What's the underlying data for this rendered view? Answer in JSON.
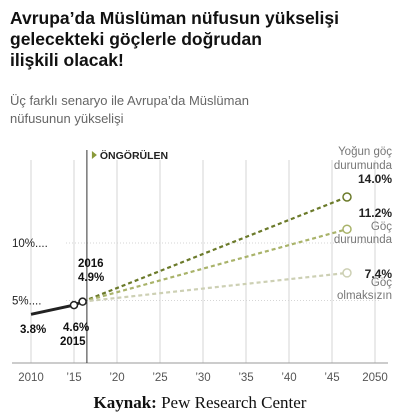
{
  "title_lines": [
    "Avrupa’da Müslüman nüfusun yükselişi",
    "gelecekteki göçlerle doğrudan",
    "ilişkili olacak!"
  ],
  "subtitle_lines": [
    "Üç farklı senaryo ile Avrupa’da Müslüman",
    "nüfusunun yükselişi"
  ],
  "source": {
    "label": "Kaynak:",
    "value": "Pew Research Center"
  },
  "colors": {
    "historical": "#222222",
    "high": "#6b7a2a",
    "medium": "#a9b36a",
    "zero": "#cdd0b4",
    "grid": "#d6d6d6",
    "axis_text": "#555555"
  },
  "chart_data": {
    "type": "line",
    "projection_marker": {
      "x": 2016.5,
      "label": "ÖNGÖRÜLEN"
    },
    "x_ticks": [
      {
        "value": 2010,
        "label": "2010"
      },
      {
        "value": 2015,
        "label": "’15"
      },
      {
        "value": 2020,
        "label": "’20"
      },
      {
        "value": 2025,
        "label": "’25"
      },
      {
        "value": 2030,
        "label": "’30"
      },
      {
        "value": 2035,
        "label": "’35"
      },
      {
        "value": 2040,
        "label": "’40"
      },
      {
        "value": 2045,
        "label": "’45"
      },
      {
        "value": 2050,
        "label": "2050"
      }
    ],
    "y_ticks": [
      {
        "value": 10,
        "label": "10%...."
      },
      {
        "value": 5,
        "label": "5%...."
      }
    ],
    "xlim": [
      2008,
      2051
    ],
    "ylim": [
      2,
      16
    ],
    "historical": {
      "points": [
        {
          "x": 2010,
          "y": 3.8,
          "label": "3.8%"
        },
        {
          "x": 2015,
          "y": 4.6,
          "label": "4.6%",
          "sublabel": "2015"
        },
        {
          "x": 2016,
          "y": 4.9,
          "label": "4.9%",
          "sublabel": "2016"
        }
      ]
    },
    "series": [
      {
        "key": "high",
        "name_lines": [
          "Yoğun göç",
          "durumunda"
        ],
        "start": {
          "x": 2016,
          "y": 4.9
        },
        "end": {
          "x": 2050,
          "y": 14.0
        },
        "end_label": "14.0%"
      },
      {
        "key": "medium",
        "name_lines": [
          "Göç",
          "durumunda"
        ],
        "start": {
          "x": 2016,
          "y": 4.9
        },
        "end": {
          "x": 2050,
          "y": 11.2
        },
        "end_label": "11.2%"
      },
      {
        "key": "zero",
        "name_lines": [
          "Göç",
          "olmaksızın"
        ],
        "start": {
          "x": 2016,
          "y": 4.9
        },
        "end": {
          "x": 2050,
          "y": 7.4
        },
        "end_label": "7.4%"
      }
    ]
  }
}
